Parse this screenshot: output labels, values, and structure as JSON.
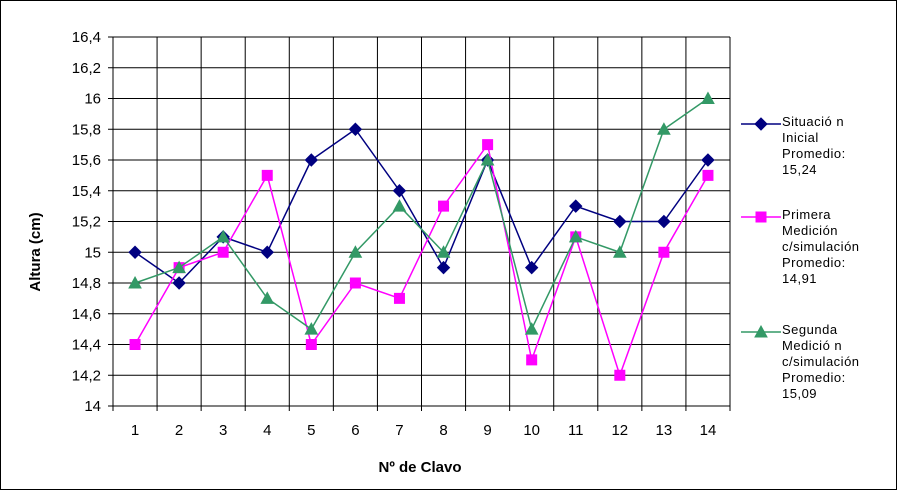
{
  "chart_data": {
    "type": "line",
    "title": "",
    "xlabel": "Nº de Clavo",
    "ylabel": "Altura (cm)",
    "x": [
      1,
      2,
      3,
      4,
      5,
      6,
      7,
      8,
      9,
      10,
      11,
      12,
      13,
      14
    ],
    "x_tick_labels": [
      "1",
      "2",
      "3",
      "4",
      "5",
      "6",
      "7",
      "8",
      "9",
      "10",
      "11",
      "12",
      "13",
      "14"
    ],
    "ylim": [
      14,
      16.4
    ],
    "y_ticks": [
      14,
      14.2,
      14.4,
      14.6,
      14.8,
      15,
      15.2,
      15.4,
      15.6,
      15.8,
      16,
      16.2,
      16.4
    ],
    "y_tick_labels": [
      "14",
      "14,2",
      "14,4",
      "14,6",
      "14,8",
      "15",
      "15,2",
      "15,4",
      "15,6",
      "15,8",
      "16",
      "16,2",
      "16,4"
    ],
    "grid": true,
    "legend_position": "right",
    "series": [
      {
        "name": "Situación Inicial Promedio: 15,24",
        "legend_lines": [
          "Situació n",
          "Inicial",
          "Promedio:",
          "15,24"
        ],
        "color": "#000080",
        "marker": "diamond",
        "values": [
          15.0,
          14.8,
          15.1,
          15.0,
          15.6,
          15.8,
          15.4,
          14.9,
          15.6,
          14.9,
          15.3,
          15.2,
          15.2,
          15.6
        ]
      },
      {
        "name": "Primera Medición c/simulación Promedio: 14,91",
        "legend_lines": [
          "Primera",
          "Medición",
          "c/simulación",
          "Promedio:",
          "14,91"
        ],
        "color": "#ff00ff",
        "marker": "square",
        "values": [
          14.4,
          14.9,
          15.0,
          15.5,
          14.4,
          14.8,
          14.7,
          15.3,
          15.7,
          14.3,
          15.1,
          14.2,
          15.0,
          15.5
        ]
      },
      {
        "name": "Segunda Medición c/simulación Promedio: 15,09",
        "legend_lines": [
          "Segunda",
          "Medició n",
          "c/simulación",
          "Promedio:",
          "15,09"
        ],
        "color": "#339966",
        "marker": "triangle",
        "values": [
          14.8,
          14.9,
          15.1,
          14.7,
          14.5,
          15.0,
          15.3,
          15.0,
          15.6,
          14.5,
          15.1,
          15.0,
          15.8,
          16.0
        ]
      }
    ]
  }
}
